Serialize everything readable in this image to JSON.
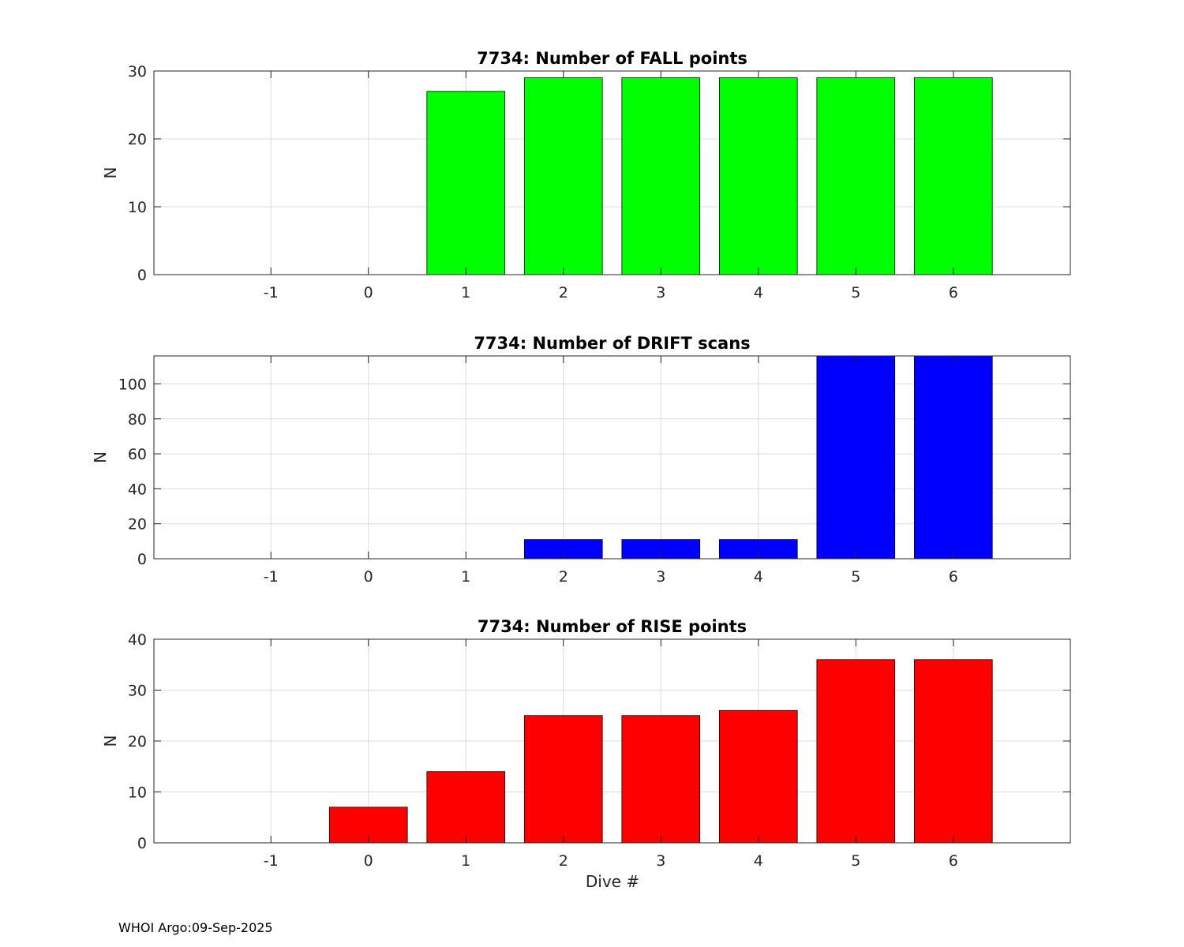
{
  "figure": {
    "footer": "WHOI Argo:09-Sep-2025",
    "xlabel": "Dive #"
  },
  "chart_data": [
    {
      "type": "bar",
      "title": "7734: Number of FALL points",
      "xlabel": "",
      "ylabel": "N",
      "color": "#00ff00",
      "x": [
        -1,
        0,
        1,
        2,
        3,
        4,
        5,
        6
      ],
      "x_tick_labels": [
        "-1",
        "0",
        "1",
        "2",
        "3",
        "4",
        "5",
        "6"
      ],
      "values": [
        0,
        0,
        27,
        29,
        29,
        29,
        29,
        29
      ],
      "xlim": [
        -2.2,
        7.2
      ],
      "ylim": [
        0,
        30
      ],
      "yticks": [
        0,
        10,
        20,
        30
      ],
      "grid": true
    },
    {
      "type": "bar",
      "title": "7734: Number of DRIFT scans",
      "xlabel": "",
      "ylabel": "N",
      "color": "#0000ff",
      "x": [
        -1,
        0,
        1,
        2,
        3,
        4,
        5,
        6
      ],
      "x_tick_labels": [
        "-1",
        "0",
        "1",
        "2",
        "3",
        "4",
        "5",
        "6"
      ],
      "values": [
        0,
        0,
        0,
        11,
        11,
        11,
        116,
        116
      ],
      "xlim": [
        -2.2,
        7.2
      ],
      "ylim": [
        0,
        116
      ],
      "yticks": [
        0,
        20,
        40,
        60,
        80,
        100
      ],
      "grid": true
    },
    {
      "type": "bar",
      "title": "7734: Number of RISE points",
      "xlabel": "Dive #",
      "ylabel": "N",
      "color": "#ff0000",
      "x": [
        -1,
        0,
        1,
        2,
        3,
        4,
        5,
        6
      ],
      "x_tick_labels": [
        "-1",
        "0",
        "1",
        "2",
        "3",
        "4",
        "5",
        "6"
      ],
      "values": [
        0,
        7,
        14,
        25,
        25,
        26,
        36,
        36
      ],
      "xlim": [
        -2.2,
        7.2
      ],
      "ylim": [
        0,
        40
      ],
      "yticks": [
        0,
        10,
        20,
        30,
        40
      ],
      "grid": true
    }
  ]
}
